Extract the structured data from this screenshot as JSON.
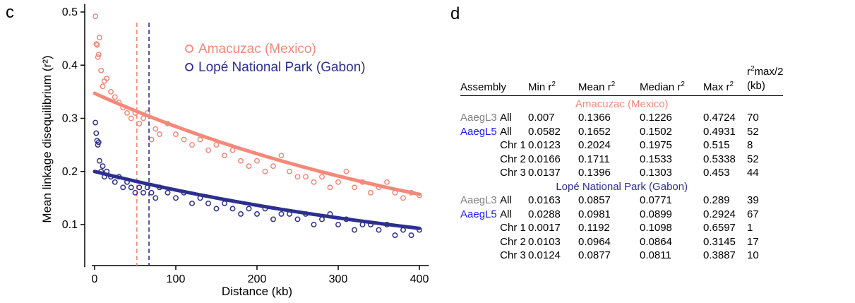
{
  "panel_c_label": "c",
  "panel_d_label": "d",
  "colors": {
    "amacuzac": "#f4897a",
    "lope": "#2d2f8e",
    "aaegl3": "#7f7f7f",
    "aaegl5": "#1a1aff"
  },
  "chart_data": {
    "type": "scatter",
    "xlabel": "Distance (kb)",
    "ylabel": "Mean linkage disequilibrium (r²)",
    "xlim": [
      0,
      410
    ],
    "ylim": [
      0.02,
      0.51
    ],
    "x_ticks": [
      0,
      100,
      200,
      300,
      400
    ],
    "y_ticks": [
      0.1,
      0.2,
      0.3,
      0.4,
      0.5
    ],
    "x_tick_labels": [
      "0",
      "100",
      "200",
      "300",
      "400"
    ],
    "y_tick_labels": [
      "0.1",
      "0.2",
      "0.3",
      "0.4",
      "0.5"
    ],
    "legend_position": "top-right",
    "series": [
      {
        "name": "Amacuzac (Mexico)",
        "color": "#f4897a",
        "fit_start": 0.347,
        "fit_end": 0.157,
        "vline_x": 52,
        "points_x": [
          1,
          2,
          3,
          4,
          5,
          6,
          8,
          10,
          12,
          15,
          20,
          25,
          30,
          35,
          40,
          45,
          50,
          55,
          60,
          65,
          70,
          75,
          80,
          90,
          100,
          110,
          120,
          130,
          140,
          150,
          160,
          170,
          180,
          190,
          200,
          210,
          220,
          230,
          240,
          250,
          260,
          270,
          280,
          290,
          300,
          310,
          320,
          330,
          340,
          350,
          360,
          370,
          380,
          390,
          400
        ],
        "points_y": [
          0.492,
          0.44,
          0.438,
          0.415,
          0.42,
          0.452,
          0.39,
          0.36,
          0.37,
          0.375,
          0.35,
          0.34,
          0.33,
          0.32,
          0.31,
          0.3,
          0.31,
          0.29,
          0.3,
          0.31,
          0.26,
          0.28,
          0.27,
          0.29,
          0.27,
          0.26,
          0.25,
          0.26,
          0.24,
          0.25,
          0.23,
          0.24,
          0.22,
          0.21,
          0.22,
          0.2,
          0.21,
          0.23,
          0.2,
          0.19,
          0.19,
          0.18,
          0.19,
          0.17,
          0.18,
          0.2,
          0.17,
          0.18,
          0.16,
          0.17,
          0.18,
          0.16,
          0.15,
          0.16,
          0.155
        ]
      },
      {
        "name": "Lopé National Park (Gabon)",
        "color": "#2d2f8e",
        "fit_start": 0.2,
        "fit_end": 0.093,
        "vline_x": 67,
        "points_x": [
          1,
          2,
          3,
          4,
          5,
          6,
          8,
          10,
          12,
          15,
          20,
          25,
          30,
          35,
          40,
          45,
          50,
          55,
          60,
          65,
          70,
          75,
          80,
          90,
          100,
          110,
          120,
          130,
          140,
          150,
          160,
          170,
          180,
          190,
          200,
          210,
          220,
          230,
          240,
          250,
          260,
          270,
          280,
          290,
          300,
          310,
          320,
          330,
          340,
          350,
          360,
          370,
          380,
          390,
          400
        ],
        "points_y": [
          0.292,
          0.272,
          0.258,
          0.25,
          0.255,
          0.22,
          0.2,
          0.21,
          0.19,
          0.2,
          0.19,
          0.18,
          0.19,
          0.17,
          0.18,
          0.17,
          0.16,
          0.17,
          0.16,
          0.17,
          0.16,
          0.15,
          0.17,
          0.16,
          0.15,
          0.16,
          0.14,
          0.15,
          0.14,
          0.13,
          0.14,
          0.13,
          0.12,
          0.13,
          0.12,
          0.13,
          0.11,
          0.12,
          0.12,
          0.11,
          0.12,
          0.1,
          0.11,
          0.12,
          0.1,
          0.11,
          0.09,
          0.1,
          0.1,
          0.09,
          0.1,
          0.08,
          0.09,
          0.08,
          0.09
        ]
      }
    ]
  },
  "table": {
    "headers": {
      "assembly": "Assembly",
      "min": "Min r",
      "mean": "Mean r",
      "median": "Median r",
      "max": "Max r",
      "sup": "2",
      "half_line1": "r",
      "half_line1_suffix": "max/2",
      "half_line2": "(kb)"
    },
    "groups": [
      {
        "name": "Amacuzac (Mexico)",
        "rows": [
          {
            "assembly": "AaegL3",
            "chr": "All",
            "min": "0.007",
            "mean": "0.1366",
            "median": "0.1226",
            "max": "0.4724",
            "half": "70"
          },
          {
            "assembly": "AaegL5",
            "chr": "All",
            "min": "0.0582",
            "mean": "0.1652",
            "median": "0.1502",
            "max": "0.4931",
            "half": "52"
          },
          {
            "assembly": "",
            "chr": "Chr 1",
            "min": "0.0123",
            "mean": "0.2024",
            "median": "0.1975",
            "max": "0.515",
            "half": "8"
          },
          {
            "assembly": "",
            "chr": "Chr 2",
            "min": "0.0166",
            "mean": "0.1711",
            "median": "0.1533",
            "max": "0.5338",
            "half": "52"
          },
          {
            "assembly": "",
            "chr": "Chr 3",
            "min": "0.0137",
            "mean": "0.1396",
            "median": "0.1303",
            "max": "0.453",
            "half": "44"
          }
        ]
      },
      {
        "name": "Lopé National Park (Gabon)",
        "rows": [
          {
            "assembly": "AaegL3",
            "chr": "All",
            "min": "0.0163",
            "mean": "0.0857",
            "median": "0.0771",
            "max": "0.289",
            "half": "39"
          },
          {
            "assembly": "AaegL5",
            "chr": "All",
            "min": "0.0288",
            "mean": "0.0981",
            "median": "0.0899",
            "max": "0.2924",
            "half": "67"
          },
          {
            "assembly": "",
            "chr": "Chr 1",
            "min": "0.0017",
            "mean": "0.1192",
            "median": "0.1098",
            "max": "0.6597",
            "half": "1"
          },
          {
            "assembly": "",
            "chr": "Chr 2",
            "min": "0.0103",
            "mean": "0.0964",
            "median": "0.0864",
            "max": "0.3145",
            "half": "17"
          },
          {
            "assembly": "",
            "chr": "Chr 3",
            "min": "0.0124",
            "mean": "0.0877",
            "median": "0.0811",
            "max": "0.3887",
            "half": "10"
          }
        ]
      }
    ]
  }
}
